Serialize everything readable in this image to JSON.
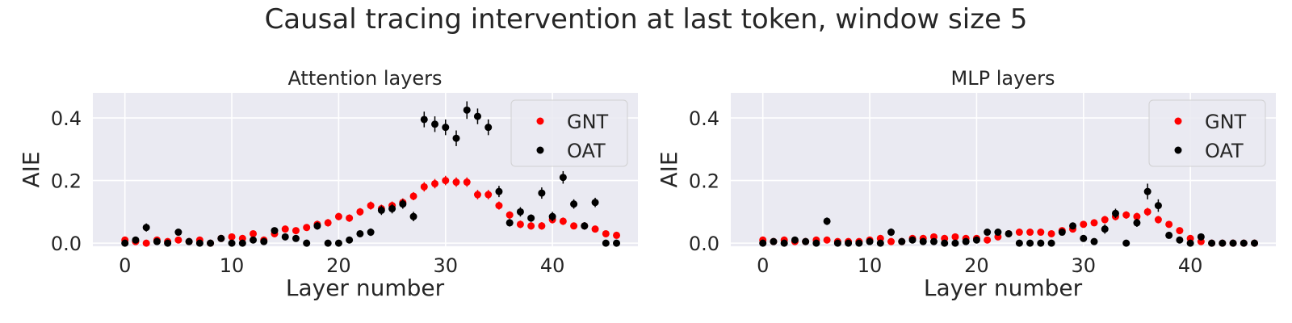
{
  "figure_title": "Causal tracing intervention at last token, window size 5",
  "colors": {
    "GNT": "#ff0000",
    "OAT": "#000000",
    "background": "#eaeaf2",
    "grid": "#ffffff"
  },
  "chart_data": [
    {
      "type": "scatter",
      "title": "Attention layers",
      "xlabel": "Layer number",
      "ylabel": "AIE",
      "xlim": [
        -3,
        48
      ],
      "ylim": [
        -0.01,
        0.48
      ],
      "xticks": [
        0,
        10,
        20,
        30,
        40
      ],
      "yticks": [
        0.0,
        0.2,
        0.4
      ],
      "ytick_labels": [
        "0.0",
        "0.2",
        "0.4"
      ],
      "grid": true,
      "legend": "top-right",
      "series": [
        {
          "name": "GNT",
          "color": "#ff0000",
          "x": [
            0,
            1,
            2,
            3,
            4,
            5,
            6,
            7,
            8,
            9,
            10,
            11,
            12,
            13,
            14,
            15,
            16,
            17,
            18,
            19,
            20,
            21,
            22,
            23,
            24,
            25,
            26,
            27,
            28,
            29,
            30,
            31,
            32,
            33,
            34,
            35,
            36,
            37,
            38,
            39,
            40,
            41,
            42,
            43,
            44,
            45,
            46
          ],
          "y": [
            0.01,
            0.005,
            0.0,
            0.01,
            0.005,
            0.01,
            0.005,
            0.01,
            0.0,
            0.015,
            0.02,
            0.015,
            0.03,
            0.01,
            0.03,
            0.045,
            0.04,
            0.05,
            0.06,
            0.065,
            0.085,
            0.08,
            0.1,
            0.12,
            0.11,
            0.12,
            0.13,
            0.15,
            0.18,
            0.19,
            0.2,
            0.195,
            0.195,
            0.155,
            0.155,
            0.12,
            0.09,
            0.06,
            0.055,
            0.055,
            0.075,
            0.07,
            0.055,
            0.055,
            0.045,
            0.03,
            0.025
          ],
          "err": [
            0.008,
            0.008,
            0.006,
            0.008,
            0.008,
            0.008,
            0.008,
            0.008,
            0.006,
            0.008,
            0.008,
            0.008,
            0.01,
            0.008,
            0.01,
            0.01,
            0.01,
            0.01,
            0.012,
            0.012,
            0.012,
            0.012,
            0.012,
            0.013,
            0.013,
            0.013,
            0.013,
            0.013,
            0.015,
            0.015,
            0.015,
            0.015,
            0.015,
            0.015,
            0.015,
            0.013,
            0.012,
            0.012,
            0.012,
            0.012,
            0.012,
            0.012,
            0.01,
            0.01,
            0.01,
            0.01,
            0.01
          ]
        },
        {
          "name": "OAT",
          "color": "#000000",
          "x": [
            0,
            1,
            2,
            3,
            4,
            5,
            6,
            7,
            8,
            9,
            10,
            11,
            12,
            13,
            14,
            15,
            16,
            17,
            18,
            19,
            20,
            21,
            22,
            23,
            24,
            25,
            26,
            27,
            28,
            29,
            30,
            31,
            32,
            33,
            34,
            35,
            36,
            37,
            38,
            39,
            40,
            41,
            42,
            43,
            44,
            45,
            46
          ],
          "y": [
            0.0,
            0.01,
            0.05,
            0.005,
            0.0,
            0.035,
            0.005,
            0.0,
            0.0,
            0.015,
            0.0,
            0.0,
            0.01,
            0.005,
            0.04,
            0.02,
            0.015,
            0.0,
            0.055,
            0.0,
            0.0,
            0.01,
            0.03,
            0.035,
            0.105,
            0.11,
            0.125,
            0.085,
            0.395,
            0.38,
            0.37,
            0.335,
            0.425,
            0.405,
            0.37,
            0.165,
            0.065,
            0.1,
            0.08,
            0.16,
            0.085,
            0.21,
            0.125,
            0.055,
            0.13,
            0.0,
            0.0
          ],
          "err": [
            0.008,
            0.008,
            0.013,
            0.008,
            0.006,
            0.01,
            0.008,
            0.006,
            0.006,
            0.008,
            0.006,
            0.006,
            0.008,
            0.006,
            0.01,
            0.008,
            0.008,
            0.006,
            0.012,
            0.006,
            0.006,
            0.008,
            0.01,
            0.012,
            0.015,
            0.015,
            0.015,
            0.015,
            0.025,
            0.025,
            0.025,
            0.025,
            0.028,
            0.025,
            0.025,
            0.018,
            0.012,
            0.015,
            0.012,
            0.018,
            0.015,
            0.02,
            0.015,
            0.012,
            0.015,
            0.006,
            0.006
          ]
        }
      ]
    },
    {
      "type": "scatter",
      "title": "MLP layers",
      "xlabel": "Layer number",
      "ylabel": "AIE",
      "xlim": [
        -3,
        48
      ],
      "ylim": [
        -0.01,
        0.48
      ],
      "xticks": [
        0,
        10,
        20,
        30,
        40
      ],
      "yticks": [
        0.0,
        0.2,
        0.4
      ],
      "ytick_labels": [
        "0.0",
        "0.2",
        "0.4"
      ],
      "grid": true,
      "legend": "top-right",
      "series": [
        {
          "name": "GNT",
          "color": "#ff0000",
          "x": [
            0,
            1,
            2,
            3,
            4,
            5,
            6,
            7,
            8,
            9,
            10,
            11,
            12,
            13,
            14,
            15,
            16,
            17,
            18,
            19,
            20,
            21,
            22,
            23,
            24,
            25,
            26,
            27,
            28,
            29,
            30,
            31,
            32,
            33,
            34,
            35,
            36,
            37,
            38,
            39,
            40,
            41,
            42,
            43,
            44,
            45,
            46
          ],
          "y": [
            0.01,
            0.005,
            0.01,
            0.005,
            0.005,
            0.01,
            0.01,
            0.005,
            0.005,
            0.005,
            0.01,
            0.015,
            0.005,
            0.005,
            0.015,
            0.015,
            0.02,
            0.015,
            0.02,
            0.015,
            0.015,
            0.01,
            0.02,
            0.03,
            0.035,
            0.035,
            0.035,
            0.03,
            0.04,
            0.045,
            0.06,
            0.065,
            0.075,
            0.085,
            0.09,
            0.085,
            0.1,
            0.075,
            0.06,
            0.04,
            0.015,
            0.005,
            0.0,
            0.0,
            0.0,
            0.0,
            0.0
          ],
          "err": [
            0.006,
            0.006,
            0.006,
            0.006,
            0.006,
            0.006,
            0.006,
            0.006,
            0.006,
            0.006,
            0.006,
            0.006,
            0.006,
            0.006,
            0.006,
            0.006,
            0.006,
            0.006,
            0.006,
            0.006,
            0.006,
            0.006,
            0.008,
            0.008,
            0.008,
            0.008,
            0.008,
            0.008,
            0.01,
            0.01,
            0.01,
            0.01,
            0.012,
            0.012,
            0.012,
            0.012,
            0.013,
            0.012,
            0.01,
            0.008,
            0.006,
            0.005,
            0.004,
            0.004,
            0.004,
            0.004,
            0.004
          ]
        },
        {
          "name": "OAT",
          "color": "#000000",
          "x": [
            0,
            1,
            2,
            3,
            4,
            5,
            6,
            7,
            8,
            9,
            10,
            11,
            12,
            13,
            14,
            15,
            16,
            17,
            18,
            19,
            20,
            21,
            22,
            23,
            24,
            25,
            26,
            27,
            28,
            29,
            30,
            31,
            32,
            33,
            34,
            35,
            36,
            37,
            38,
            39,
            40,
            41,
            42,
            43,
            44,
            45,
            46
          ],
          "y": [
            0.0,
            0.005,
            0.0,
            0.01,
            0.005,
            0.0,
            0.07,
            0.0,
            0.0,
            0.0,
            0.005,
            0.0,
            0.035,
            0.005,
            0.01,
            0.005,
            0.005,
            0.0,
            0.0,
            0.005,
            0.01,
            0.035,
            0.035,
            0.03,
            0.0,
            0.0,
            0.0,
            0.0,
            0.035,
            0.055,
            0.015,
            0.005,
            0.045,
            0.095,
            0.0,
            0.065,
            0.165,
            0.12,
            0.025,
            0.01,
            0.0,
            0.02,
            0.0,
            0.0,
            0.0,
            0.0,
            0.0
          ],
          "err": [
            0.005,
            0.005,
            0.005,
            0.006,
            0.005,
            0.005,
            0.012,
            0.005,
            0.005,
            0.005,
            0.005,
            0.005,
            0.012,
            0.005,
            0.006,
            0.005,
            0.005,
            0.005,
            0.005,
            0.005,
            0.006,
            0.01,
            0.01,
            0.01,
            0.005,
            0.005,
            0.005,
            0.005,
            0.01,
            0.01,
            0.008,
            0.006,
            0.015,
            0.015,
            0.005,
            0.013,
            0.025,
            0.02,
            0.008,
            0.006,
            0.004,
            0.006,
            0.004,
            0.004,
            0.004,
            0.004,
            0.004
          ]
        }
      ]
    }
  ]
}
